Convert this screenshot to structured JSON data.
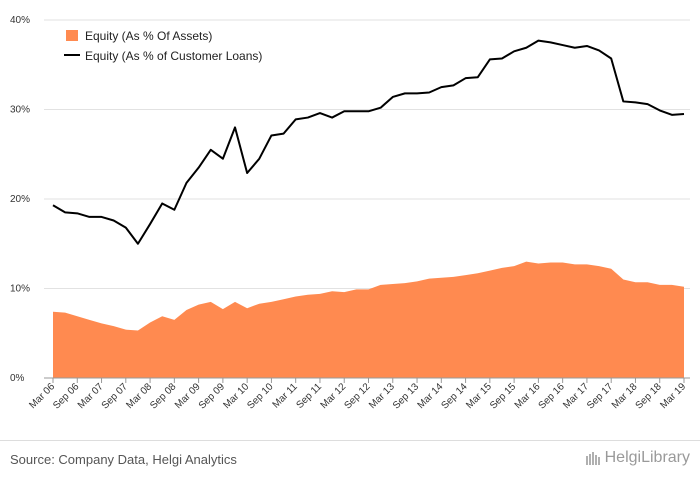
{
  "chart_data": {
    "type": "line",
    "title": "",
    "xlabel": "",
    "ylabel": "",
    "ylim": [
      0,
      40
    ],
    "y_ticks": [
      "0%",
      "10%",
      "20%",
      "30%",
      "40%"
    ],
    "y_tick_values": [
      0,
      10,
      20,
      30,
      40
    ],
    "grid": true,
    "legend_position": "top-left",
    "x_tick_labels": [
      "Mar 06",
      "Sep 06",
      "Mar 07",
      "Sep 07",
      "Mar 08",
      "Sep 08",
      "Mar 09",
      "Sep 09",
      "Mar 10",
      "Sep 10",
      "Mar 11",
      "Sep 11",
      "Mar 12",
      "Sep 12",
      "Mar 13",
      "Sep 13",
      "Mar 14",
      "Sep 14",
      "Mar 15",
      "Sep 15",
      "Mar 16",
      "Sep 16",
      "Mar 17",
      "Sep 17",
      "Mar 18",
      "Sep 18",
      "Mar 19"
    ],
    "series": [
      {
        "name": "Equity (As % Of Assets)",
        "type": "area",
        "color": "#ff8a50",
        "values": [
          7.4,
          7.3,
          6.9,
          6.5,
          6.1,
          5.8,
          5.4,
          5.3,
          6.2,
          6.9,
          6.5,
          7.6,
          8.2,
          8.5,
          7.7,
          8.5,
          7.8,
          8.3,
          8.5,
          8.8,
          9.1,
          9.3,
          9.4,
          9.7,
          9.6,
          9.9,
          9.9,
          10.4,
          10.5,
          10.6,
          10.8,
          11.1,
          11.2,
          11.3,
          11.5,
          11.7,
          12.0,
          12.3,
          12.5,
          13.0,
          12.8,
          12.9,
          12.9,
          12.7,
          12.7,
          12.5,
          12.2,
          11.0,
          10.7,
          10.7,
          10.4,
          10.4,
          10.2
        ]
      },
      {
        "name": "Equity (As % of Customer Loans)",
        "type": "line",
        "color": "#000000",
        "values": [
          19.3,
          18.5,
          18.4,
          18.0,
          18.0,
          17.6,
          16.8,
          15.0,
          17.2,
          19.5,
          18.8,
          21.8,
          23.5,
          25.5,
          24.5,
          28.0,
          22.9,
          24.5,
          27.1,
          27.3,
          28.9,
          29.1,
          29.6,
          29.1,
          29.8,
          29.8,
          29.8,
          30.2,
          31.4,
          31.8,
          31.8,
          31.9,
          32.5,
          32.7,
          33.5,
          33.6,
          35.6,
          35.7,
          36.5,
          36.9,
          37.7,
          37.5,
          37.2,
          36.9,
          37.1,
          36.6,
          35.7,
          30.9,
          30.8,
          30.6,
          29.9,
          29.4,
          29.5
        ]
      }
    ]
  },
  "footer": {
    "source": "Source: Company Data, Helgi Analytics",
    "brand": "HelgiLibrary"
  }
}
